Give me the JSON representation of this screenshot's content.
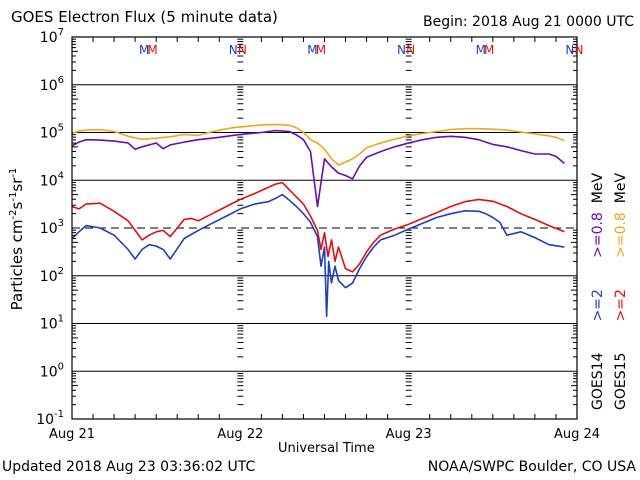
{
  "header": {
    "title": "GOES Electron Flux (5 minute data)",
    "begin": "Begin: 2018 Aug 21 0000 UTC"
  },
  "footer": {
    "updated": "Updated 2018 Aug 23 03:36:02 UTC",
    "credit": "NOAA/SWPC Boulder, CO USA"
  },
  "chart_data": {
    "type": "line",
    "title": "GOES Electron Flux (5 minute data)",
    "xlabel": "Universal Time",
    "ylabel": "Particles cm-2s-1sr-1",
    "ylabel_parts": {
      "base": "Particles cm",
      "e1": "-2",
      "s": "s",
      "e2": "-1",
      "sr": "sr",
      "e3": "-1"
    },
    "yscale": "log",
    "ylim_log10": [
      -1,
      7
    ],
    "xlim_hours": [
      0,
      72
    ],
    "x_tick_labels": [
      "Aug 21",
      "Aug 22",
      "Aug 23",
      "Aug 24"
    ],
    "y_tick_labels": [
      {
        "base": "10",
        "exp": "7"
      },
      {
        "base": "10",
        "exp": "6"
      },
      {
        "base": "10",
        "exp": "5"
      },
      {
        "base": "10",
        "exp": "4"
      },
      {
        "base": "10",
        "exp": "3"
      },
      {
        "base": "10",
        "exp": "2"
      },
      {
        "base": "10",
        "exp": "1"
      },
      {
        "base": "10",
        "exp": "0"
      },
      {
        "base": "10",
        "exp": "-1"
      }
    ],
    "threshold_log10": 3,
    "grid": true,
    "markers": [
      {
        "label": "M",
        "hour": 10.0,
        "color": "#1f3fbf"
      },
      {
        "label": "M",
        "hour": 11.2,
        "color": "#e01010"
      },
      {
        "label": "N",
        "hour": 22.7,
        "color": "#1f3fbf"
      },
      {
        "label": "N",
        "hour": 24.0,
        "color": "#e01010"
      },
      {
        "label": "M",
        "hour": 34.0,
        "color": "#1f3fbf"
      },
      {
        "label": "M",
        "hour": 35.2,
        "color": "#e01010"
      },
      {
        "label": "N",
        "hour": 46.7,
        "color": "#1f3fbf"
      },
      {
        "label": "N",
        "hour": 48.0,
        "color": "#e01010"
      },
      {
        "label": "M",
        "hour": 58.0,
        "color": "#1f3fbf"
      },
      {
        "label": "M",
        "hour": 59.2,
        "color": "#e01010"
      },
      {
        "label": "N",
        "hour": 70.7,
        "color": "#1f3fbf"
      },
      {
        "label": "N",
        "hour": 72.0,
        "color": "#e01010"
      }
    ],
    "legend": {
      "position": "right",
      "rows": [
        {
          "sat": "GOES14",
          "e2": ">=2",
          "e08": ">=0.8",
          "unit": "MeV",
          "color_e2": "#1f3fbf",
          "color_e08": "#6a0dad"
        },
        {
          "sat": "GOES15",
          "e2": ">=2",
          "e08": ">=0.8",
          "unit": "MeV",
          "color_e2": "#e01010",
          "color_e08": "#f0a818"
        }
      ]
    },
    "series": [
      {
        "name": "GOES15 >=0.8 MeV",
        "color": "#f0a818",
        "hours": [
          0,
          1,
          2,
          4,
          6,
          8,
          10,
          12,
          14,
          16,
          18,
          19.5,
          21,
          23,
          25,
          27,
          29,
          31,
          32,
          33,
          34,
          35,
          36,
          37,
          38,
          39,
          40,
          41,
          42,
          44,
          46,
          48,
          50,
          52,
          54,
          56,
          58,
          60,
          62,
          64,
          66,
          68,
          69,
          70.2
        ],
        "log10": [
          4.98,
          5.03,
          5.05,
          5.06,
          5.02,
          4.92,
          4.86,
          4.88,
          4.91,
          4.96,
          4.94,
          5.0,
          5.05,
          5.1,
          5.13,
          5.16,
          5.17,
          5.15,
          5.1,
          5.0,
          4.85,
          4.78,
          4.65,
          4.45,
          4.32,
          4.38,
          4.45,
          4.55,
          4.68,
          4.78,
          4.86,
          4.93,
          4.98,
          5.02,
          5.06,
          5.08,
          5.08,
          5.07,
          5.05,
          5.01,
          4.97,
          4.93,
          4.9,
          4.83
        ]
      },
      {
        "name": "GOES14 >=0.8 MeV",
        "color": "#6a0dad",
        "hours": [
          0,
          1,
          2,
          4,
          6,
          8,
          9,
          10,
          12,
          13,
          14,
          16,
          18,
          21,
          24,
          27,
          29,
          31,
          32,
          33,
          34,
          35,
          36,
          37,
          38,
          39,
          40,
          41,
          42,
          44,
          46,
          48,
          50,
          52,
          54,
          56,
          58,
          59,
          60,
          62,
          64,
          66,
          68,
          69,
          70.2
        ],
        "log10": [
          4.72,
          4.8,
          4.85,
          4.84,
          4.82,
          4.78,
          4.65,
          4.7,
          4.78,
          4.66,
          4.74,
          4.8,
          4.85,
          4.9,
          4.96,
          5.0,
          5.04,
          5.02,
          4.95,
          4.85,
          4.6,
          3.45,
          4.45,
          4.28,
          4.15,
          4.1,
          4.03,
          4.3,
          4.48,
          4.6,
          4.7,
          4.78,
          4.85,
          4.9,
          4.92,
          4.9,
          4.85,
          4.8,
          4.75,
          4.7,
          4.62,
          4.55,
          4.55,
          4.5,
          4.35
        ]
      },
      {
        "name": "GOES15 >=2 MeV",
        "color": "#e01010",
        "hours": [
          0,
          1,
          2,
          4,
          6,
          8,
          9,
          10,
          11,
          12,
          13,
          14,
          16,
          17,
          18,
          20,
          22,
          24,
          26,
          28,
          29,
          30,
          31,
          32,
          33,
          34,
          35,
          35.5,
          36,
          36.5,
          37,
          37.5,
          38,
          39,
          40,
          41,
          42,
          43,
          44,
          46,
          48,
          50,
          52,
          54,
          56,
          58,
          60,
          62,
          64,
          66,
          68,
          70.2
        ],
        "log10": [
          3.45,
          3.4,
          3.5,
          3.52,
          3.35,
          3.15,
          2.95,
          2.75,
          2.85,
          2.92,
          2.95,
          2.82,
          3.18,
          3.2,
          3.15,
          3.3,
          3.45,
          3.6,
          3.72,
          3.85,
          3.92,
          3.95,
          3.8,
          3.65,
          3.5,
          3.25,
          2.95,
          2.55,
          2.9,
          2.4,
          2.75,
          2.3,
          2.6,
          2.15,
          2.08,
          2.25,
          2.5,
          2.7,
          2.85,
          2.98,
          3.08,
          3.2,
          3.32,
          3.45,
          3.55,
          3.6,
          3.56,
          3.45,
          3.3,
          3.18,
          3.05,
          2.92
        ]
      },
      {
        "name": "GOES14 >=2 MeV",
        "color": "#1f3fbf",
        "hours": [
          0,
          1,
          2,
          4,
          6,
          8,
          9,
          10,
          11,
          12,
          13,
          14,
          16,
          18,
          20,
          22,
          24,
          26,
          28,
          29,
          30,
          31,
          32,
          33,
          34,
          35,
          35.5,
          36,
          36.3,
          36.6,
          37,
          37.5,
          38,
          39,
          40,
          41,
          42,
          43,
          44,
          46,
          48,
          50,
          52,
          54,
          56,
          58,
          59,
          60,
          61,
          62,
          64,
          66,
          68,
          70.2
        ],
        "log10": [
          2.78,
          2.92,
          3.05,
          3.0,
          2.85,
          2.55,
          2.35,
          2.55,
          2.65,
          2.62,
          2.55,
          2.35,
          2.78,
          2.95,
          3.1,
          3.25,
          3.4,
          3.5,
          3.55,
          3.62,
          3.7,
          3.58,
          3.45,
          3.3,
          3.12,
          2.82,
          2.2,
          2.6,
          1.15,
          2.3,
          1.85,
          2.2,
          1.9,
          1.75,
          1.85,
          2.15,
          2.4,
          2.6,
          2.75,
          2.85,
          2.98,
          3.1,
          3.22,
          3.3,
          3.36,
          3.35,
          3.3,
          3.22,
          3.12,
          2.85,
          2.92,
          2.8,
          2.65,
          2.6
        ]
      }
    ]
  }
}
